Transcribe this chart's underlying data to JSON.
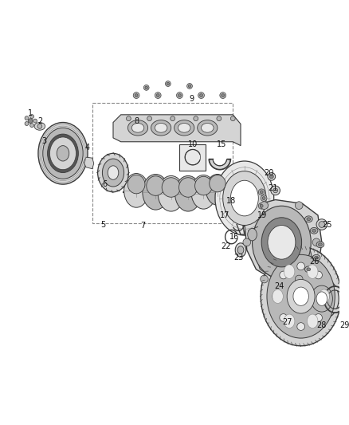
{
  "background_color": "#ffffff",
  "fig_width": 4.38,
  "fig_height": 5.33,
  "dpi": 100,
  "gray1": "#3a3a3a",
  "gray2": "#888888",
  "gray3": "#b8b8b8",
  "gray4": "#d4d4d4",
  "gray5": "#e8e8e8"
}
